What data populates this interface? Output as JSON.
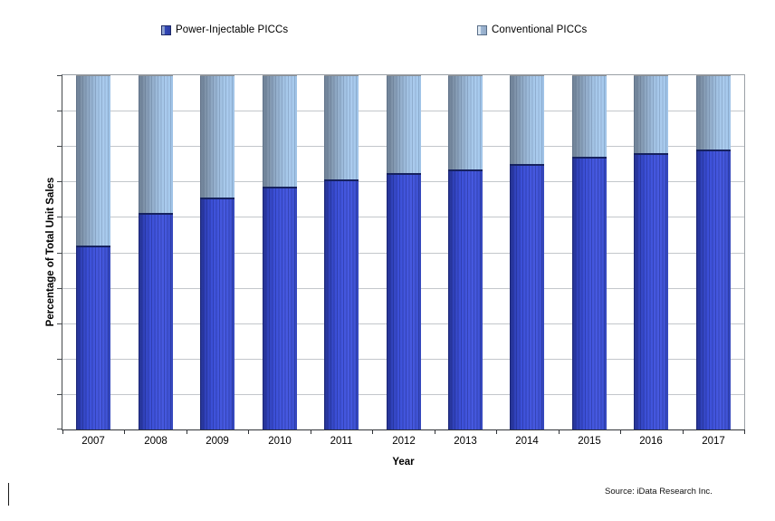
{
  "legend": {
    "power_label": "Power-Injectable PICCs",
    "conventional_label": "Conventional PICCs"
  },
  "axes": {
    "x_title": "Year",
    "y_title": "Percentage of Total Unit Sales"
  },
  "source_note": "Source: iData Research Inc.",
  "colors": {
    "power_main": "#4155d8",
    "power_dark_edge": "#222e85",
    "power_boundary_line": "#16225f",
    "conventional_main": "#a5c6e8",
    "conventional_dark_edge": "#6d7f94",
    "gridline": "#c3c7cb",
    "plot_border": "#9aa0a6",
    "axis_line": "#303337",
    "background": "#ffffff"
  },
  "chart_data": {
    "type": "bar",
    "subtype": "stacked-percentage",
    "categories": [
      "2007",
      "2008",
      "2009",
      "2010",
      "2011",
      "2012",
      "2013",
      "2014",
      "2015",
      "2016",
      "2017"
    ],
    "series": [
      {
        "name": "Power-Injectable PICCs",
        "values": [
          52,
          61,
          65.5,
          68.5,
          70.5,
          72.5,
          73.5,
          75,
          77,
          78,
          79
        ]
      },
      {
        "name": "Conventional PICCs",
        "values": [
          48,
          39,
          34.5,
          31.5,
          29.5,
          27.5,
          26.5,
          25,
          23,
          22,
          21
        ]
      }
    ],
    "title": "",
    "xlabel": "Year",
    "ylabel": "Percentage of Total Unit Sales",
    "ylim": [
      0,
      100
    ],
    "gridline_interval": 10,
    "grid": true,
    "legend_position": "top",
    "y_tick_labels_visible": false
  }
}
